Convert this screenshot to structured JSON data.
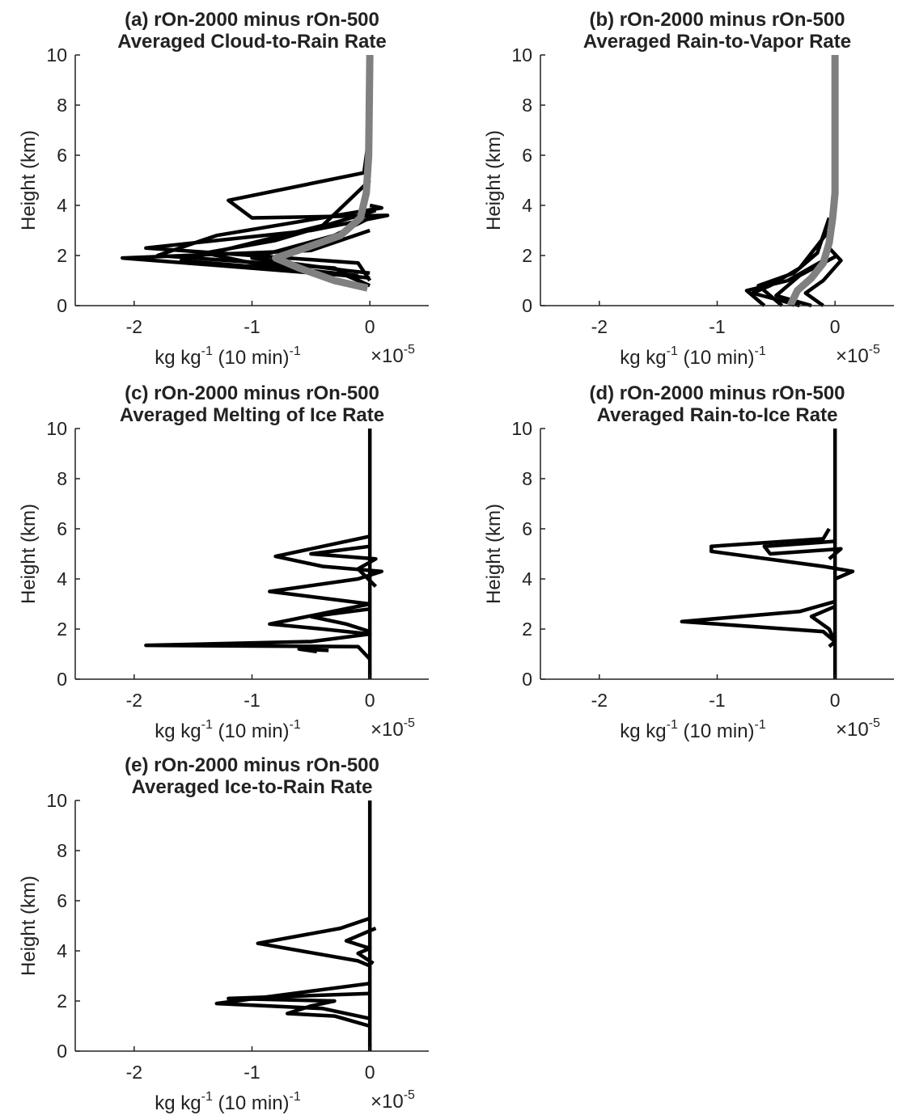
{
  "chart_data": [
    {
      "type": "line",
      "title": "(a) rOn-2000 minus rOn-500",
      "subtitle": "Averaged Cloud-to-Rain Rate",
      "ylabel": "Height (km)",
      "xlabel": [
        "kg kg",
        "-1",
        " (10 min)",
        "-1"
      ],
      "x_multiplier": [
        "×10",
        "-5"
      ],
      "xlim": [
        -2.5,
        0.5
      ],
      "xticks": [
        -2,
        -1,
        0
      ],
      "ylim": [
        0,
        10
      ],
      "yticks": [
        0,
        2,
        4,
        6,
        8,
        10
      ],
      "series": [
        {
          "color": "#000000",
          "x": [
            0,
            -0.2,
            -2.1,
            -0.5,
            0
          ],
          "y": [
            0.8,
            1.2,
            1.9,
            2.2,
            3
          ]
        },
        {
          "color": "#000000",
          "x": [
            0,
            -0.05,
            -1.2,
            -1.0,
            0.15,
            -0.5,
            -1.9,
            -0.1,
            0
          ],
          "y": [
            7,
            5.3,
            4.2,
            3.5,
            3.6,
            3.0,
            2.3,
            1.7,
            1.0
          ]
        },
        {
          "color": "#000000",
          "x": [
            0,
            0.1,
            -1.3,
            -1.8,
            -0.3,
            -0.05
          ],
          "y": [
            4,
            3.9,
            2.8,
            2.0,
            1.5,
            0.9
          ]
        },
        {
          "color": "#000000",
          "x": [
            0,
            -0.4,
            -1.6,
            -0.6,
            0
          ],
          "y": [
            5,
            3.2,
            1.8,
            1.4,
            1.1
          ]
        },
        {
          "color": "#000000",
          "x": [
            0.05,
            -0.8,
            -1.4,
            -0.9,
            -0.1
          ],
          "y": [
            3.8,
            2.6,
            2.1,
            1.6,
            1.2
          ]
        },
        {
          "color": "#000000",
          "x": [
            0,
            -0.3,
            -1.0,
            -0.2,
            0
          ],
          "y": [
            3.5,
            2.8,
            1.9,
            1.4,
            1.3
          ]
        },
        {
          "color": "#808080",
          "x": [
            -0.02,
            -0.3,
            -0.6,
            -0.8,
            -0.55,
            -0.25,
            -0.08,
            -0.03,
            -0.01,
            0
          ],
          "y": [
            0.7,
            1.0,
            1.5,
            1.9,
            2.3,
            2.8,
            3.5,
            4.5,
            6,
            10
          ]
        }
      ]
    },
    {
      "type": "line",
      "title": "(b) rOn-2000 minus rOn-500",
      "subtitle": "Averaged Rain-to-Vapor Rate",
      "ylabel": "Height (km)",
      "xlabel": [
        "kg kg",
        "-1",
        " (10 min)",
        "-1"
      ],
      "x_multiplier": [
        "×10",
        "-5"
      ],
      "xlim": [
        -2.5,
        0.5
      ],
      "xticks": [
        -2,
        -1,
        0
      ],
      "ylim": [
        0,
        10
      ],
      "yticks": [
        0,
        2,
        4,
        6,
        8,
        10
      ],
      "series": [
        {
          "color": "#000000",
          "x": [
            -0.3,
            -0.7,
            -0.55,
            -0.3,
            -0.05,
            0
          ],
          "y": [
            0,
            0.5,
            0.8,
            1.5,
            3.0,
            4.3
          ]
        },
        {
          "color": "#000000",
          "x": [
            -0.6,
            -0.75,
            -0.4,
            -0.1,
            -0.05
          ],
          "y": [
            0,
            0.6,
            1.0,
            1.8,
            2.2
          ]
        },
        {
          "color": "#000000",
          "x": [
            -0.2,
            -0.5,
            -0.3,
            0.02
          ],
          "y": [
            0,
            0.4,
            1.2,
            2.0
          ]
        },
        {
          "color": "#000000",
          "x": [
            -0.1,
            -0.25,
            -0.1,
            0.05,
            -0.05
          ],
          "y": [
            0,
            0.5,
            1.0,
            1.8,
            2.3
          ]
        },
        {
          "color": "#000000",
          "x": [
            -0.45,
            -0.65,
            -0.35,
            -0.15,
            -0.05
          ],
          "y": [
            0,
            0.8,
            1.3,
            2.1,
            3.5
          ]
        },
        {
          "color": "#808080",
          "x": [
            -0.38,
            -0.35,
            -0.32,
            -0.2,
            -0.1,
            -0.05,
            -0.02,
            0,
            0
          ],
          "y": [
            0,
            0.3,
            0.6,
            1.1,
            1.7,
            2.5,
            3.5,
            4.5,
            10
          ]
        }
      ]
    },
    {
      "type": "line",
      "title": "(c) rOn-2000 minus rOn-500",
      "subtitle": "Averaged Melting of Ice Rate",
      "ylabel": "Height (km)",
      "xlabel": [
        "kg kg",
        "-1",
        " (10 min)",
        "-1"
      ],
      "x_multiplier": [
        "×10",
        "-5"
      ],
      "xlim": [
        -2.5,
        0.5
      ],
      "xticks": [
        -2,
        -1,
        0
      ],
      "ylim": [
        0,
        10
      ],
      "yticks": [
        0,
        2,
        4,
        6,
        8,
        10
      ],
      "series": [
        {
          "color": "#000000",
          "x": [
            0,
            0
          ],
          "y": [
            0,
            10
          ]
        },
        {
          "color": "#000000",
          "x": [
            0,
            -0.8,
            -0.4,
            0.1,
            -0.1,
            -0.85,
            0
          ],
          "y": [
            5.7,
            4.9,
            4.5,
            4.3,
            4.0,
            3.5,
            3.0
          ]
        },
        {
          "color": "#000000",
          "x": [
            0,
            -0.85,
            -0.4,
            0,
            -0.5,
            -1.9,
            -0.1,
            0
          ],
          "y": [
            3.0,
            2.2,
            2.0,
            1.8,
            1.5,
            1.35,
            1.3,
            0.8
          ]
        },
        {
          "color": "#000000",
          "x": [
            0,
            -0.5,
            -0.2,
            0
          ],
          "y": [
            2.8,
            2.5,
            2.2,
            1.9
          ]
        },
        {
          "color": "#000000",
          "x": [
            -0.45,
            -0.6,
            -0.35
          ],
          "y": [
            1.1,
            1.2,
            1.15
          ]
        },
        {
          "color": "#000000",
          "x": [
            0,
            -0.5,
            0.05,
            -0.1,
            0.05
          ],
          "y": [
            5.3,
            5.0,
            4.8,
            4.4,
            3.7
          ]
        }
      ]
    },
    {
      "type": "line",
      "title": "(d) rOn-2000 minus rOn-500",
      "subtitle": "Averaged Rain-to-Ice Rate",
      "ylabel": "Height (km)",
      "xlabel": [
        "kg kg",
        "-1",
        " (10 min)",
        "-1"
      ],
      "x_multiplier": [
        "×10",
        "-5"
      ],
      "xlim": [
        -2.5,
        0.5
      ],
      "xticks": [
        -2,
        -1,
        0
      ],
      "ylim": [
        0,
        10
      ],
      "yticks": [
        0,
        2,
        4,
        6,
        8,
        10
      ],
      "series": [
        {
          "color": "#000000",
          "x": [
            0,
            0
          ],
          "y": [
            0,
            10
          ]
        },
        {
          "color": "#000000",
          "x": [
            -0.05,
            -0.1,
            -1.05,
            -1.05,
            -0.1,
            0.15,
            0
          ],
          "y": [
            6,
            5.6,
            5.3,
            5.1,
            4.5,
            4.3,
            4.0
          ]
        },
        {
          "color": "#000000",
          "x": [
            0,
            -0.6,
            -0.55,
            0.05,
            -0.05
          ],
          "y": [
            5.5,
            5.3,
            5.0,
            5.2,
            4.8
          ]
        },
        {
          "color": "#000000",
          "x": [
            0,
            -0.3,
            -1.3,
            -0.1,
            0
          ],
          "y": [
            3.1,
            2.7,
            2.3,
            1.9,
            1.5
          ]
        },
        {
          "color": "#000000",
          "x": [
            0,
            -0.2,
            -0.05,
            0,
            -0.05
          ],
          "y": [
            2.9,
            2.5,
            2.0,
            1.5,
            1.3
          ]
        }
      ]
    },
    {
      "type": "line",
      "title": "(e) rOn-2000 minus rOn-500",
      "subtitle": "Averaged Ice-to-Rain Rate",
      "ylabel": "Height (km)",
      "xlabel": [
        "kg kg",
        "-1",
        " (10 min)",
        "-1"
      ],
      "x_multiplier": [
        "×10",
        "-5"
      ],
      "xlim": [
        -2.5,
        0.5
      ],
      "xticks": [
        -2,
        -1,
        0
      ],
      "ylim": [
        0,
        10
      ],
      "yticks": [
        0,
        2,
        4,
        6,
        8,
        10
      ],
      "series": [
        {
          "color": "#000000",
          "x": [
            0,
            0
          ],
          "y": [
            0,
            10
          ]
        },
        {
          "color": "#000000",
          "x": [
            0,
            -0.25,
            -0.95,
            -0.1,
            0
          ],
          "y": [
            5.3,
            4.9,
            4.3,
            3.6,
            3.4
          ]
        },
        {
          "color": "#000000",
          "x": [
            0.05,
            -0.2,
            0,
            -0.1,
            0.03
          ],
          "y": [
            4.9,
            4.4,
            4.1,
            3.9,
            3.5
          ]
        },
        {
          "color": "#000000",
          "x": [
            0,
            -1.3,
            -0.4,
            0
          ],
          "y": [
            2.7,
            1.9,
            1.7,
            1.3
          ]
        },
        {
          "color": "#000000",
          "x": [
            0,
            -1.2,
            -0.3,
            -0.5,
            -0.7,
            -0.3,
            0
          ],
          "y": [
            2.3,
            2.1,
            2.0,
            1.8,
            1.5,
            1.4,
            1.0
          ]
        }
      ]
    }
  ]
}
